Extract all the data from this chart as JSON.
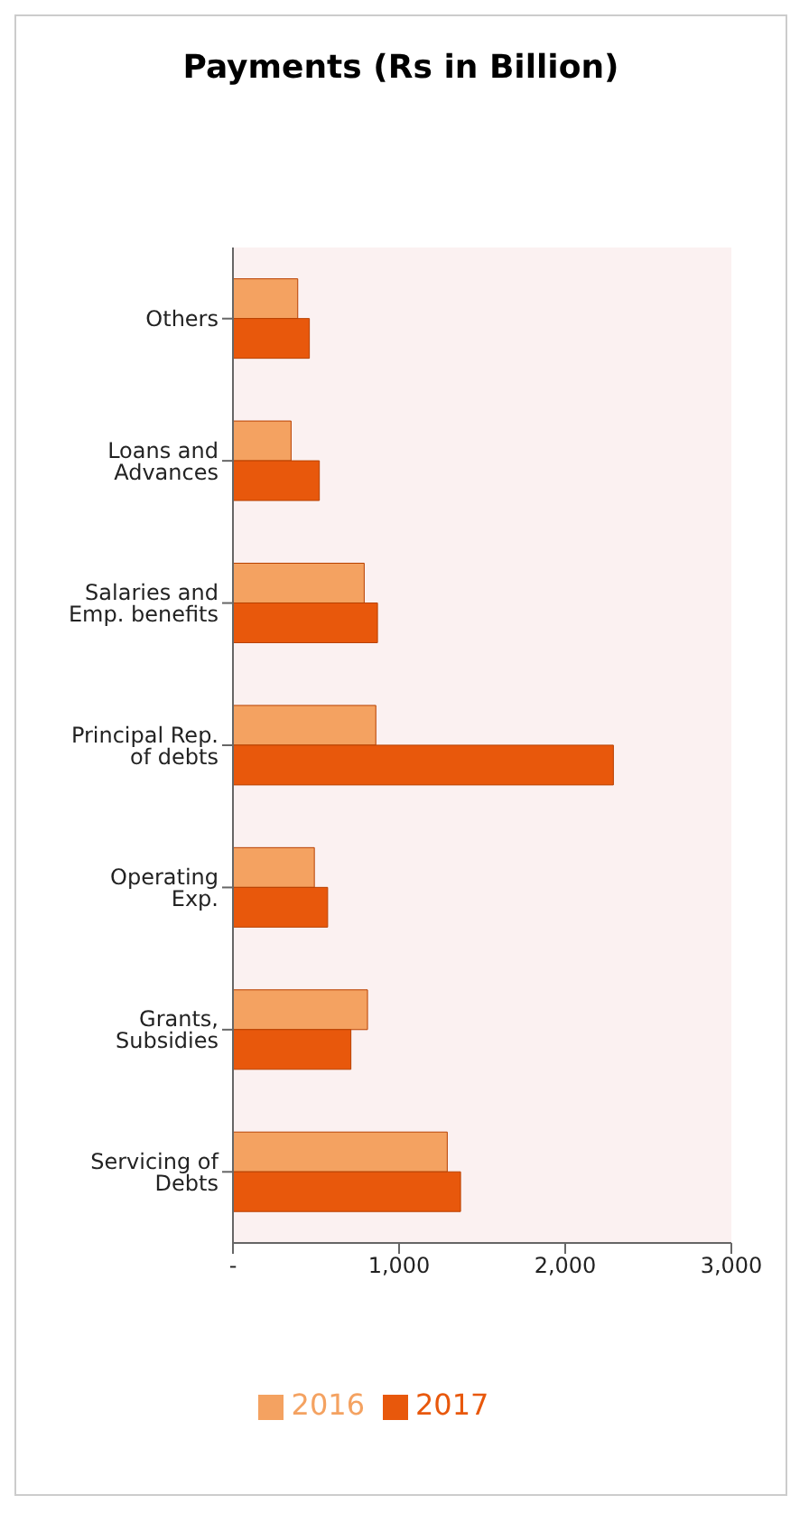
{
  "chart_data": {
    "type": "bar",
    "orientation": "horizontal",
    "title": "Payments (Rs in Billion)",
    "categories": [
      "Others",
      "Loans and Advances",
      "Salaries and Emp. benefits",
      "Principal Rep. of debts",
      "Operating Exp.",
      "Grants, Subsidies",
      "Servicing of Debts"
    ],
    "series": [
      {
        "name": "2016",
        "color": "#f4a261",
        "values": [
          390,
          350,
          790,
          860,
          490,
          810,
          1290
        ]
      },
      {
        "name": "2017",
        "color": "#e8580c",
        "values": [
          460,
          520,
          870,
          2290,
          570,
          710,
          1370
        ]
      }
    ],
    "xlim": [
      0,
      3000
    ],
    "xticks": [
      {
        "value": 0,
        "label": "-"
      },
      {
        "value": 1000,
        "label": "1,000"
      },
      {
        "value": 2000,
        "label": "2,000"
      },
      {
        "value": 3000,
        "label": "3,000"
      }
    ],
    "grid": false,
    "legend": "bottom"
  }
}
